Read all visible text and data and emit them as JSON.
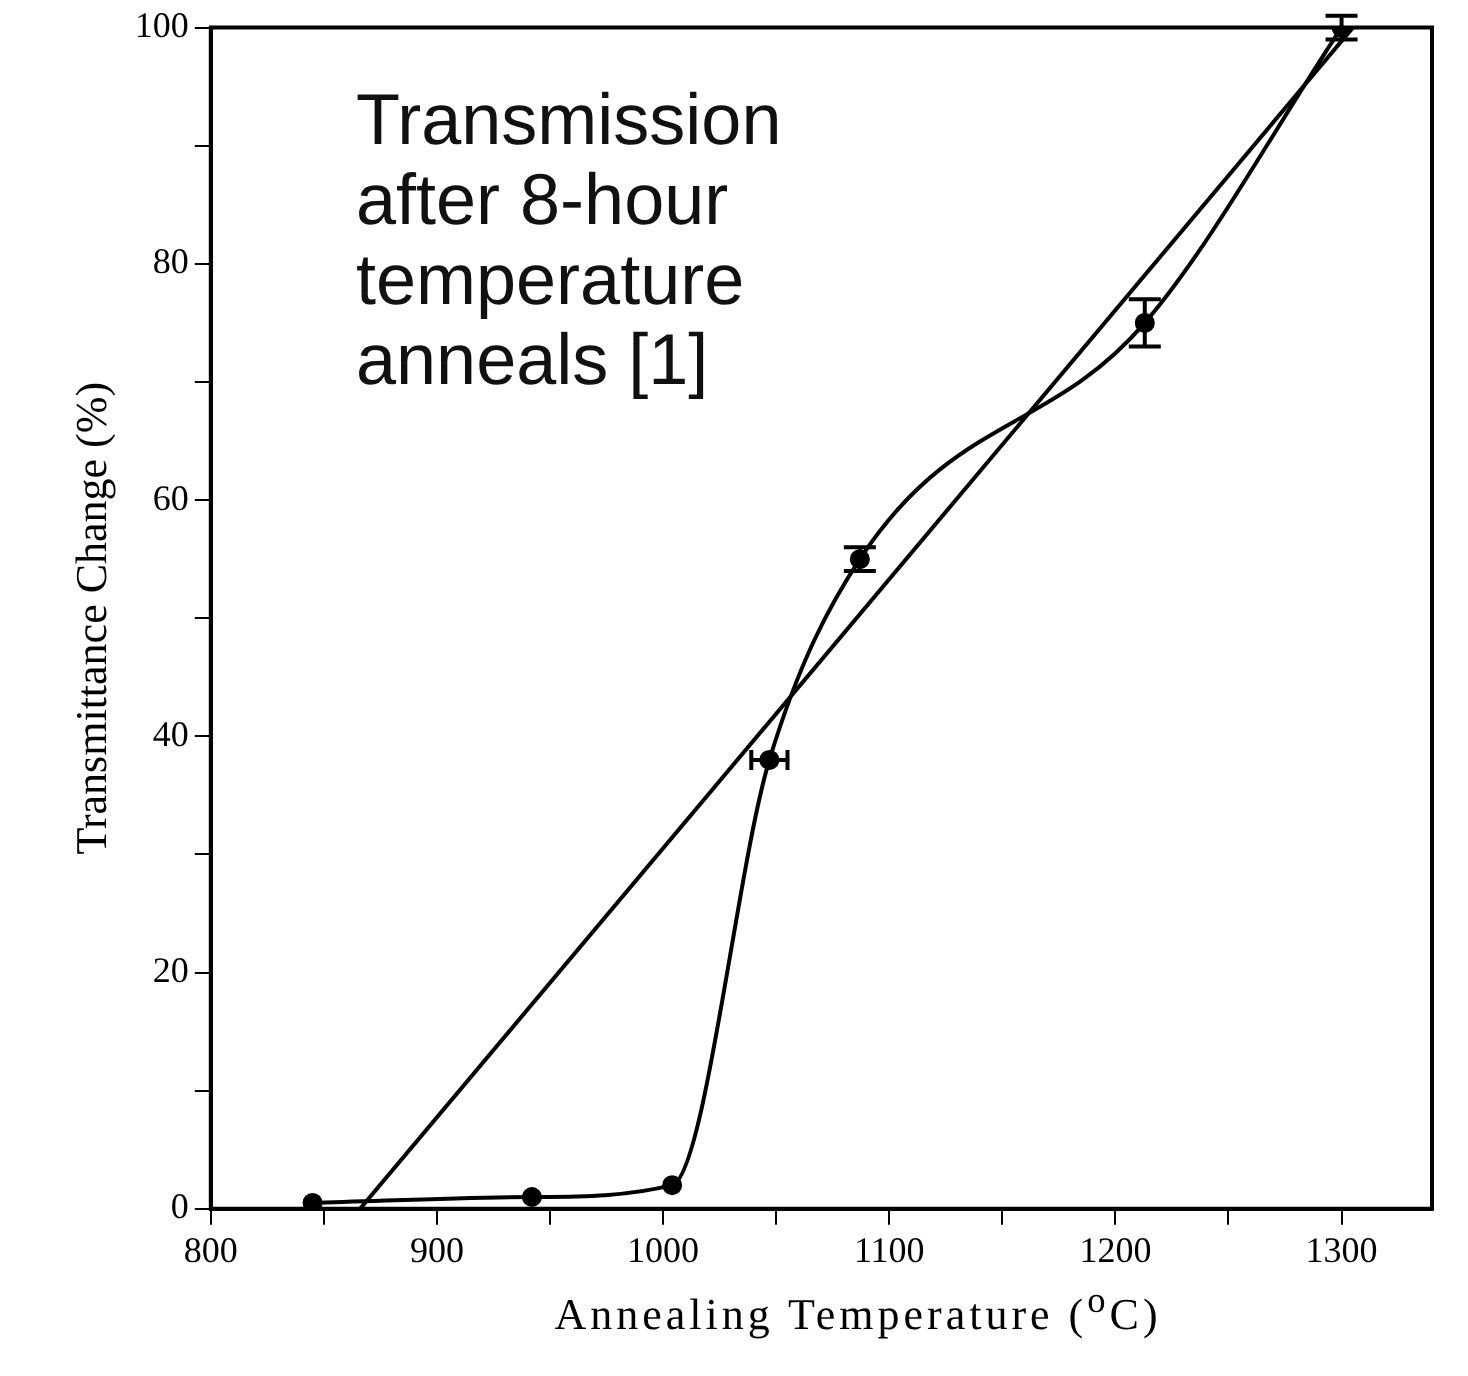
{
  "chart_data": {
    "type": "line",
    "xlabel": "Annealing Temperature ($^{o}$C)",
    "ylabel": "Transmittance Change (%)",
    "annotations": [
      "Transmission after 8-hour temperature anneals [1]"
    ],
    "xlim": [
      800,
      1340
    ],
    "xticks": [
      800,
      {
        "value": 850,
        "label": null
      },
      900,
      {
        "value": 950,
        "label": null
      },
      1000,
      {
        "value": 1050,
        "label": null
      },
      1100,
      {
        "value": 1150,
        "label": null
      },
      1200,
      {
        "value": 1250,
        "label": null
      },
      1300
    ],
    "ylim": [
      0,
      100
    ],
    "yticks": [
      0,
      {
        "value": 10,
        "label": null
      },
      20,
      {
        "value": 30,
        "label": null
      },
      40,
      {
        "value": 50,
        "label": null
      },
      60,
      {
        "value": 70,
        "label": null
      },
      80,
      {
        "value": 90,
        "label": null
      },
      100
    ],
    "series": [
      {
        "color": "#000000",
        "marker": "circle",
        "x": [
          845,
          942,
          1004,
          1047,
          1087,
          1213,
          1300
        ],
        "values": [
          0.5,
          1,
          2,
          38,
          55,
          75,
          100
        ],
        "errors": [
          null,
          null,
          null,
          null,
          1,
          [
            73,
            77
          ],
          1
        ],
        "xerrors": [
          null,
          null,
          null,
          8,
          null,
          null,
          null
        ]
      },
      {
        "color": "#000000",
        "marker": "none",
        "x": [
          866,
          1305
        ],
        "values": [
          0,
          100
        ]
      }
    ]
  }
}
